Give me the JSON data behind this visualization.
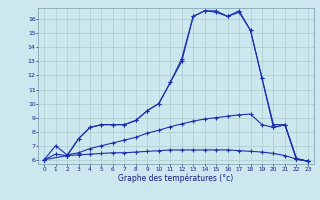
{
  "title": "Graphe des températures (°c)",
  "bg_color": "#cce8ee",
  "line_color": "#1a2fb0",
  "grid_color": "#aacccc",
  "xlim": [
    -0.5,
    23.5
  ],
  "ylim": [
    5.7,
    16.8
  ],
  "yticks": [
    6,
    7,
    8,
    9,
    10,
    11,
    12,
    13,
    14,
    15,
    16
  ],
  "xticks": [
    0,
    1,
    2,
    3,
    4,
    5,
    6,
    7,
    8,
    9,
    10,
    11,
    12,
    13,
    14,
    15,
    16,
    17,
    18,
    19,
    20,
    21,
    22,
    23
  ],
  "series1_x": [
    0,
    1,
    2,
    3,
    4,
    5,
    6,
    7,
    8,
    9,
    10,
    11,
    12,
    13,
    14,
    15,
    16,
    17,
    18,
    19,
    20,
    21,
    22,
    23
  ],
  "series1_y": [
    6.0,
    6.4,
    6.3,
    6.35,
    6.4,
    6.45,
    6.5,
    6.5,
    6.55,
    6.6,
    6.65,
    6.7,
    6.7,
    6.7,
    6.7,
    6.7,
    6.7,
    6.65,
    6.6,
    6.55,
    6.45,
    6.3,
    6.05,
    5.9
  ],
  "series2_x": [
    0,
    1,
    2,
    3,
    4,
    5,
    6,
    7,
    8,
    9,
    10,
    11,
    12,
    13,
    14,
    15,
    16,
    17,
    18,
    19,
    20,
    21,
    22,
    23
  ],
  "series2_y": [
    6.0,
    7.0,
    6.35,
    6.5,
    6.8,
    7.0,
    7.2,
    7.4,
    7.6,
    7.9,
    8.1,
    8.35,
    8.55,
    8.75,
    8.9,
    9.0,
    9.1,
    9.2,
    9.25,
    8.5,
    8.3,
    8.5,
    6.05,
    5.9
  ],
  "series3_x": [
    0,
    2,
    3,
    4,
    5,
    6,
    7,
    8,
    9,
    10,
    11,
    12,
    13,
    14,
    15,
    16,
    17,
    18,
    19,
    20,
    21,
    22,
    23
  ],
  "series3_y": [
    6.0,
    6.3,
    7.5,
    8.3,
    8.5,
    8.5,
    8.5,
    8.8,
    9.5,
    10.0,
    11.5,
    13.0,
    16.2,
    16.6,
    16.5,
    16.2,
    16.5,
    15.2,
    11.8,
    8.3,
    8.5,
    6.05,
    5.9
  ],
  "series4_x": [
    2,
    3,
    4,
    5,
    6,
    7,
    8,
    9,
    10,
    11,
    12,
    13,
    14,
    15,
    16,
    17,
    18,
    19,
    20,
    21,
    22,
    23
  ],
  "series4_y": [
    6.3,
    7.5,
    8.3,
    8.5,
    8.5,
    8.5,
    8.8,
    9.5,
    10.0,
    11.5,
    13.2,
    16.2,
    16.6,
    16.6,
    16.2,
    16.6,
    15.2,
    11.8,
    8.5,
    8.5,
    6.1,
    5.9
  ]
}
